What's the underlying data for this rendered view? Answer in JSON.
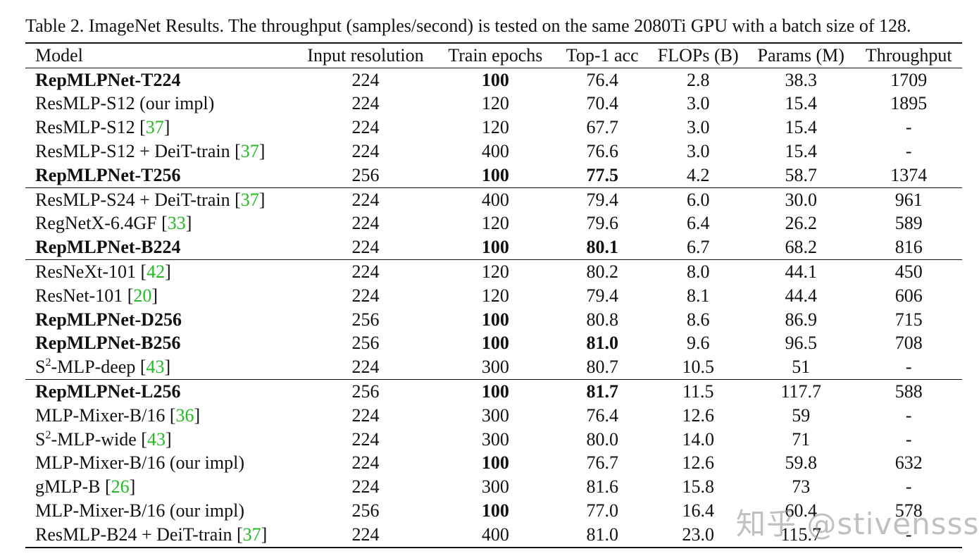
{
  "caption": "Table 2. ImageNet Results. The throughput (samples/second) is tested on the same 2080Ti GPU with a batch size of 128.",
  "headers": [
    "Model",
    "Input resolution",
    "Train epochs",
    "Top-1 acc",
    "FLOPs (B)",
    "Params (M)",
    "Throughput"
  ],
  "rows": [
    {
      "model": "RepMLPNet-T224",
      "ref": "",
      "sup": "",
      "tail": "",
      "model_bold": true,
      "res": "224",
      "epochs": "100",
      "epochs_bold": true,
      "acc": "76.4",
      "acc_bold": false,
      "flops": "2.8",
      "params": "38.3",
      "throughput": "1709",
      "group_start": false
    },
    {
      "model": "ResMLP-S12 (our impl)",
      "ref": "",
      "sup": "",
      "tail": "",
      "model_bold": false,
      "res": "224",
      "epochs": "120",
      "epochs_bold": false,
      "acc": "70.4",
      "acc_bold": false,
      "flops": "3.0",
      "params": "15.4",
      "throughput": "1895",
      "group_start": false
    },
    {
      "model": "ResMLP-S12 [",
      "ref": "37",
      "sup": "",
      "tail": "]",
      "model_bold": false,
      "res": "224",
      "epochs": "120",
      "epochs_bold": false,
      "acc": "67.7",
      "acc_bold": false,
      "flops": "3.0",
      "params": "15.4",
      "throughput": "-",
      "group_start": false
    },
    {
      "model": "ResMLP-S12 + DeiT-train [",
      "ref": "37",
      "sup": "",
      "tail": "]",
      "model_bold": false,
      "res": "224",
      "epochs": "400",
      "epochs_bold": false,
      "acc": "76.6",
      "acc_bold": false,
      "flops": "3.0",
      "params": "15.4",
      "throughput": "-",
      "group_start": false
    },
    {
      "model": "RepMLPNet-T256",
      "ref": "",
      "sup": "",
      "tail": "",
      "model_bold": true,
      "res": "256",
      "epochs": "100",
      "epochs_bold": true,
      "acc": "77.5",
      "acc_bold": true,
      "flops": "4.2",
      "params": "58.7",
      "throughput": "1374",
      "group_start": false
    },
    {
      "model": "ResMLP-S24 + DeiT-train [",
      "ref": "37",
      "sup": "",
      "tail": "]",
      "model_bold": false,
      "res": "224",
      "epochs": "400",
      "epochs_bold": false,
      "acc": "79.4",
      "acc_bold": false,
      "flops": "6.0",
      "params": "30.0",
      "throughput": "961",
      "group_start": true
    },
    {
      "model": "RegNetX-6.4GF [",
      "ref": "33",
      "sup": "",
      "tail": "]",
      "model_bold": false,
      "res": "224",
      "epochs": "120",
      "epochs_bold": false,
      "acc": "79.6",
      "acc_bold": false,
      "flops": "6.4",
      "params": "26.2",
      "throughput": "589",
      "group_start": false
    },
    {
      "model": "RepMLPNet-B224",
      "ref": "",
      "sup": "",
      "tail": "",
      "model_bold": true,
      "res": "224",
      "epochs": "100",
      "epochs_bold": true,
      "acc": "80.1",
      "acc_bold": true,
      "flops": "6.7",
      "params": "68.2",
      "throughput": "816",
      "group_start": false
    },
    {
      "model": "ResNeXt-101 [",
      "ref": "42",
      "sup": "",
      "tail": "]",
      "model_bold": false,
      "res": "224",
      "epochs": "120",
      "epochs_bold": false,
      "acc": "80.2",
      "acc_bold": false,
      "flops": "8.0",
      "params": "44.1",
      "throughput": "450",
      "group_start": true
    },
    {
      "model": "ResNet-101 [",
      "ref": "20",
      "sup": "",
      "tail": "]",
      "model_bold": false,
      "res": "224",
      "epochs": "120",
      "epochs_bold": false,
      "acc": "79.4",
      "acc_bold": false,
      "flops": "8.1",
      "params": "44.4",
      "throughput": "606",
      "group_start": false
    },
    {
      "model": "RepMLPNet-D256",
      "ref": "",
      "sup": "",
      "tail": "",
      "model_bold": true,
      "res": "256",
      "epochs": "100",
      "epochs_bold": true,
      "acc": "80.8",
      "acc_bold": false,
      "flops": "8.6",
      "params": "86.9",
      "throughput": "715",
      "group_start": false
    },
    {
      "model": "RepMLPNet-B256",
      "ref": "",
      "sup": "",
      "tail": "",
      "model_bold": true,
      "res": "256",
      "epochs": "100",
      "epochs_bold": true,
      "acc": "81.0",
      "acc_bold": true,
      "flops": "9.6",
      "params": "96.5",
      "throughput": "708",
      "group_start": false
    },
    {
      "model": "S",
      "ref": "43",
      "sup": "2",
      "mid": "-MLP-deep [",
      "tail": "]",
      "model_bold": false,
      "res": "224",
      "epochs": "300",
      "epochs_bold": false,
      "acc": "80.7",
      "acc_bold": false,
      "flops": "10.5",
      "params": "51",
      "throughput": "-",
      "group_start": false
    },
    {
      "model": "RepMLPNet-L256",
      "ref": "",
      "sup": "",
      "tail": "",
      "model_bold": true,
      "res": "256",
      "epochs": "100",
      "epochs_bold": true,
      "acc": "81.7",
      "acc_bold": true,
      "flops": "11.5",
      "params": "117.7",
      "throughput": "588",
      "group_start": true
    },
    {
      "model": "MLP-Mixer-B/16 [",
      "ref": "36",
      "sup": "",
      "tail": "]",
      "model_bold": false,
      "res": "224",
      "epochs": "300",
      "epochs_bold": false,
      "acc": "76.4",
      "acc_bold": false,
      "flops": "12.6",
      "params": "59",
      "throughput": "-",
      "group_start": false
    },
    {
      "model": "S",
      "ref": "43",
      "sup": "2",
      "mid": "-MLP-wide [",
      "tail": "]",
      "model_bold": false,
      "res": "224",
      "epochs": "300",
      "epochs_bold": false,
      "acc": "80.0",
      "acc_bold": false,
      "flops": "14.0",
      "params": "71",
      "throughput": "-",
      "group_start": false
    },
    {
      "model": "MLP-Mixer-B/16 (our impl)",
      "ref": "",
      "sup": "",
      "tail": "",
      "model_bold": false,
      "res": "224",
      "epochs": "100",
      "epochs_bold": true,
      "acc": "76.7",
      "acc_bold": false,
      "flops": "12.6",
      "params": "59.8",
      "throughput": "632",
      "group_start": false
    },
    {
      "model": "gMLP-B [",
      "ref": "26",
      "sup": "",
      "tail": "]",
      "model_bold": false,
      "res": "224",
      "epochs": "300",
      "epochs_bold": false,
      "acc": "81.6",
      "acc_bold": false,
      "flops": "15.8",
      "params": "73",
      "throughput": "-",
      "group_start": false
    },
    {
      "model": "MLP-Mixer-B/16 (our impl)",
      "ref": "",
      "sup": "",
      "tail": "",
      "model_bold": false,
      "res": "256",
      "epochs": "100",
      "epochs_bold": true,
      "acc": "77.0",
      "acc_bold": false,
      "flops": "16.4",
      "params": "60.4",
      "throughput": "578",
      "group_start": false
    },
    {
      "model": "ResMLP-B24 + DeiT-train [",
      "ref": "37",
      "sup": "",
      "tail": "]",
      "model_bold": false,
      "res": "224",
      "epochs": "400",
      "epochs_bold": false,
      "acc": "81.0",
      "acc_bold": false,
      "flops": "23.0",
      "params": "115.7",
      "throughput": "-",
      "group_start": false
    }
  ],
  "watermark": "知乎 @stivensss",
  "colors": {
    "citation": "#22bb22",
    "text": "#111111",
    "background": "#ffffff"
  }
}
